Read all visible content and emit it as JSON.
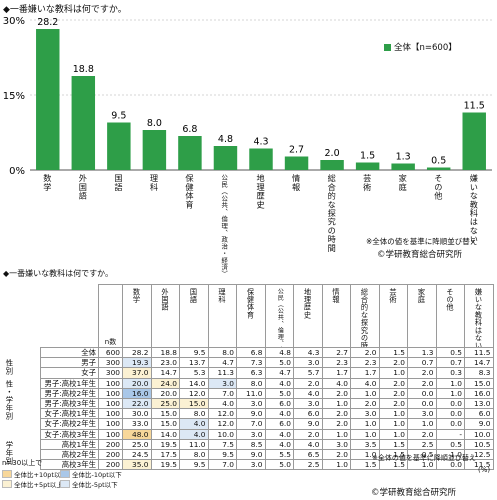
{
  "chart_data": {
    "type": "bar",
    "title": "◆一番嫌いな教科は何ですか。",
    "legend": "全体【n=600】",
    "legend_position": "top-right",
    "categories": [
      "数学",
      "外国語",
      "国語",
      "理科",
      "保健体育",
      "公民（公共、倫理、政治・経済）",
      "地理歴史",
      "情報",
      "総合的な探究の時間",
      "芸術",
      "家庭",
      "その他",
      "嫌いな教科はない"
    ],
    "values": [
      28.2,
      18.8,
      9.5,
      8.0,
      6.8,
      4.8,
      4.3,
      2.7,
      2.0,
      1.5,
      1.3,
      0.5,
      11.5
    ],
    "yticks": [
      "30%",
      "15%",
      "0%"
    ],
    "ylim": [
      0,
      30
    ],
    "bar_color": "#2e9e48",
    "note": "※全体の値を基準に降順並び替え",
    "copyright": "©学研教育総合研究所"
  },
  "table": {
    "title": "◆一番嫌いな教科は何ですか。",
    "n_header": "n数",
    "columns": [
      "数学",
      "外国語",
      "国語",
      "理科",
      "保健体育",
      "公民（公共、倫理、政治・経済）",
      "地理歴史",
      "情報",
      "総合的な探究の時間",
      "芸術",
      "家庭",
      "その他",
      "嫌いな教科はない"
    ],
    "groups": [
      {
        "label": "",
        "rows": [
          0
        ]
      },
      {
        "label": "性別",
        "rows": [
          1,
          2
        ]
      },
      {
        "label": "性・学年別",
        "rows": [
          3,
          4,
          5,
          6,
          7,
          8
        ]
      },
      {
        "label": "学年別",
        "rows": [
          9,
          10,
          11
        ]
      }
    ],
    "rows": [
      {
        "label": "全体",
        "n": "600",
        "values": [
          "28.2",
          "18.8",
          "9.5",
          "8.0",
          "6.8",
          "4.8",
          "4.3",
          "2.7",
          "2.0",
          "1.5",
          "1.3",
          "0.5",
          "11.5"
        ],
        "hl": [
          "",
          "",
          "",
          "",
          "",
          "",
          "",
          "",
          "",
          "",
          "",
          "",
          ""
        ]
      },
      {
        "label": "男子",
        "n": "300",
        "values": [
          "19.3",
          "23.0",
          "13.7",
          "4.7",
          "7.3",
          "5.0",
          "3.0",
          "2.3",
          "2.3",
          "2.0",
          "0.7",
          "0.7",
          "14.7"
        ],
        "hl": [
          "lo5",
          "",
          "",
          "",
          "",
          "",
          "",
          "",
          "",
          "",
          "",
          "",
          ""
        ]
      },
      {
        "label": "女子",
        "n": "300",
        "values": [
          "37.0",
          "14.7",
          "5.3",
          "11.3",
          "6.3",
          "4.7",
          "5.7",
          "1.7",
          "1.7",
          "1.0",
          "2.0",
          "0.3",
          "8.3"
        ],
        "hl": [
          "hi5",
          "",
          "",
          "",
          "",
          "",
          "",
          "",
          "",
          "",
          "",
          "",
          ""
        ]
      },
      {
        "label": "男子:高校1年生",
        "n": "100",
        "values": [
          "20.0",
          "24.0",
          "14.0",
          "3.0",
          "8.0",
          "4.0",
          "2.0",
          "4.0",
          "4.0",
          "2.0",
          "2.0",
          "1.0",
          "15.0"
        ],
        "hl": [
          "lo5",
          "hi5",
          "",
          "lo5",
          "",
          "",
          "",
          "",
          "",
          "",
          "",
          "",
          ""
        ]
      },
      {
        "label": "男子:高校2年生",
        "n": "100",
        "values": [
          "16.0",
          "20.0",
          "12.0",
          "7.0",
          "11.0",
          "5.0",
          "4.0",
          "2.0",
          "1.0",
          "2.0",
          "0.0",
          "1.0",
          "16.0"
        ],
        "hl": [
          "lo10",
          "",
          "",
          "",
          "",
          "",
          "",
          "",
          "",
          "",
          "",
          "",
          ""
        ]
      },
      {
        "label": "男子:高校3年生",
        "n": "100",
        "values": [
          "22.0",
          "25.0",
          "15.0",
          "4.0",
          "3.0",
          "6.0",
          "3.0",
          "1.0",
          "2.0",
          "2.0",
          "0.0",
          "0.0",
          "13.0"
        ],
        "hl": [
          "lo5",
          "hi5",
          "hi5",
          "",
          "",
          "",
          "",
          "",
          "",
          "",
          "",
          "",
          ""
        ]
      },
      {
        "label": "女子:高校1年生",
        "n": "100",
        "values": [
          "30.0",
          "15.0",
          "8.0",
          "12.0",
          "9.0",
          "4.0",
          "6.0",
          "2.0",
          "3.0",
          "1.0",
          "3.0",
          "0.0",
          "6.0"
        ],
        "hl": [
          "",
          "",
          "",
          "",
          "",
          "",
          "",
          "",
          "",
          "",
          "",
          "",
          ""
        ]
      },
      {
        "label": "女子:高校2年生",
        "n": "100",
        "values": [
          "33.0",
          "15.0",
          "4.0",
          "12.0",
          "7.0",
          "6.0",
          "9.0",
          "2.0",
          "1.0",
          "1.0",
          "1.0",
          "0.0",
          "9.0"
        ],
        "hl": [
          "",
          "",
          "lo5",
          "",
          "",
          "",
          "",
          "",
          "",
          "",
          "",
          "",
          ""
        ]
      },
      {
        "label": "女子:高校3年生",
        "n": "100",
        "values": [
          "48.0",
          "14.0",
          "4.0",
          "10.0",
          "3.0",
          "4.0",
          "2.0",
          "1.0",
          "1.0",
          "1.0",
          "2.0",
          "-",
          "10.0"
        ],
        "hl": [
          "hi10",
          "",
          "lo5",
          "",
          "",
          "",
          "",
          "",
          "",
          "",
          "",
          "",
          ""
        ]
      },
      {
        "label": "高校1年生",
        "n": "200",
        "values": [
          "25.0",
          "19.5",
          "11.0",
          "7.5",
          "8.5",
          "4.0",
          "4.0",
          "3.0",
          "3.5",
          "1.5",
          "2.5",
          "0.5",
          "10.5"
        ],
        "hl": [
          "",
          "",
          "",
          "",
          "",
          "",
          "",
          "",
          "",
          "",
          "",
          "",
          ""
        ]
      },
      {
        "label": "高校2年生",
        "n": "200",
        "values": [
          "24.5",
          "17.5",
          "8.0",
          "9.5",
          "9.0",
          "5.5",
          "6.5",
          "2.0",
          "1.0",
          "1.5",
          "0.5",
          "1.0",
          "12.5"
        ],
        "hl": [
          "",
          "",
          "",
          "",
          "",
          "",
          "",
          "",
          "",
          "",
          "",
          "",
          ""
        ]
      },
      {
        "label": "高校3年生",
        "n": "200",
        "values": [
          "35.0",
          "19.5",
          "9.5",
          "7.0",
          "3.0",
          "5.0",
          "2.5",
          "1.0",
          "1.5",
          "1.5",
          "1.0",
          "0.0",
          "11.5"
        ],
        "hl": [
          "hi5",
          "",
          "",
          "",
          "",
          "",
          "",
          "",
          "",
          "",
          "",
          "",
          ""
        ]
      }
    ],
    "legend_title": "n=30以上で",
    "legend_items": [
      {
        "label": "全体比+10pt以上",
        "cls": "c-hi10"
      },
      {
        "label": "全体比-10pt以下",
        "cls": "c-lo10"
      },
      {
        "label": "全体比+5pt以上",
        "cls": "c-hi5"
      },
      {
        "label": "全体比-5pt以下",
        "cls": "c-lo5"
      }
    ],
    "note": "※全体の値を基準に降順並び替え",
    "unit": "(%)",
    "copyright": "©学研教育総合研究所"
  }
}
